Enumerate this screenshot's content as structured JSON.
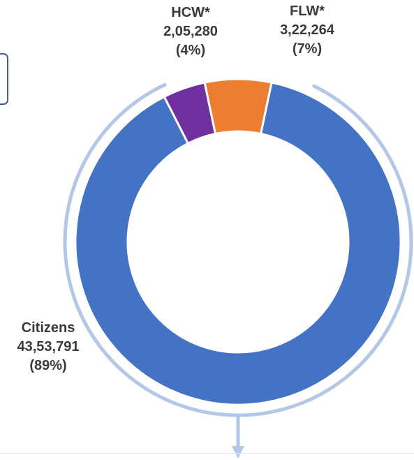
{
  "chart_data": {
    "type": "pie",
    "donut": true,
    "title": "",
    "slices": [
      {
        "name": "HCW*",
        "value": 205280,
        "value_label": "2,05,280",
        "percent_label": "(4%)",
        "color": "#7030A0"
      },
      {
        "name": "FLW*",
        "value": 322264,
        "value_label": "3,22,264",
        "percent_label": "(7%)",
        "color": "#ED7D31"
      },
      {
        "name": "Citizens",
        "value": 4353791,
        "value_label": "43,53,791",
        "percent_label": "(89%)",
        "color": "#4472C4"
      }
    ],
    "legend": "none"
  },
  "colors": {
    "outer_arc": "#B4C7E7",
    "slice_border": "#ffffff",
    "label_text": "#3a3a3a",
    "box_border": "#3f5f8f"
  }
}
